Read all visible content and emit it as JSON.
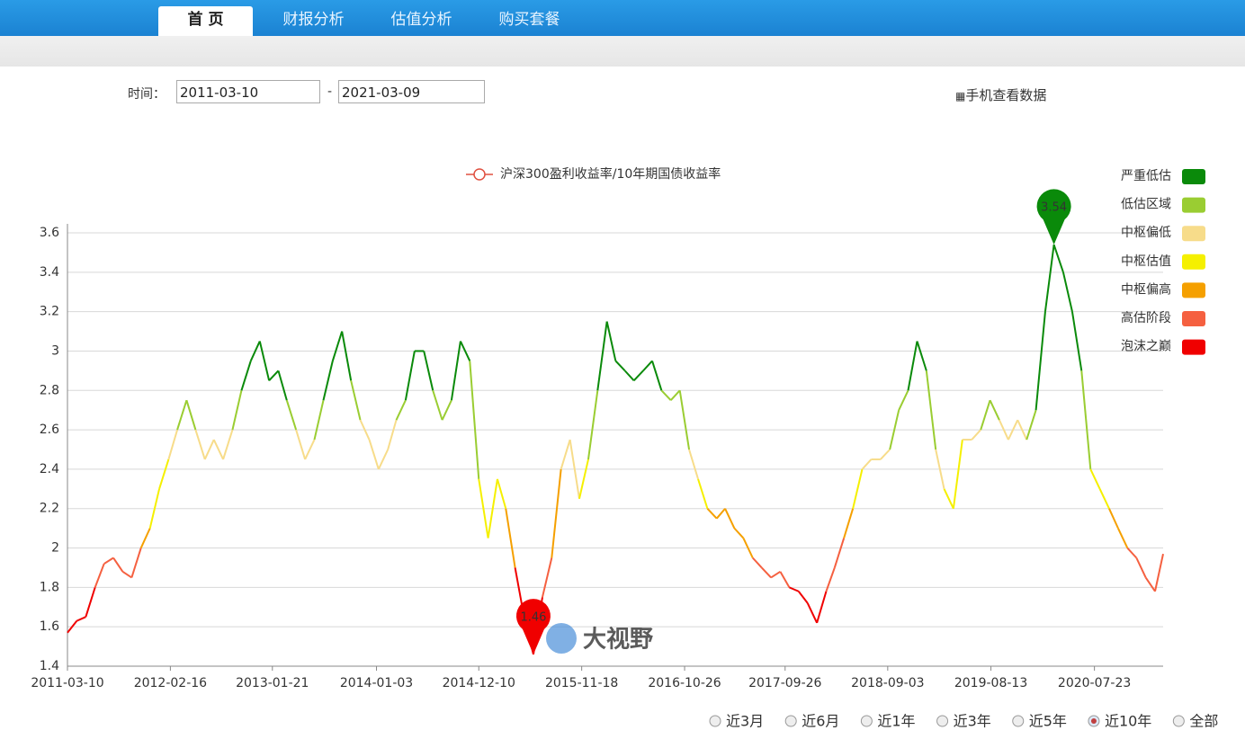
{
  "nav": {
    "tabs": [
      "首 页",
      "财报分析",
      "估值分析",
      "购买套餐"
    ],
    "active": 0
  },
  "filter": {
    "label": "时间：",
    "start": "2011-03-10",
    "separator": "-",
    "end": "2021-03-09",
    "mobile_link": "手机查看数据"
  },
  "chart_data": {
    "type": "line",
    "series_name": "沪深300盈利收益率/10年期国债收益率",
    "legend": [
      {
        "name": "严重低估",
        "color": "#0a8a0a",
        "min": 2.8
      },
      {
        "name": "低估区域",
        "color": "#9acd32",
        "min": 2.6
      },
      {
        "name": "中枢偏低",
        "color": "#f7dc8a",
        "min": 2.4
      },
      {
        "name": "中枢估值",
        "color": "#f5f000",
        "min": 2.2
      },
      {
        "name": "中枢偏高",
        "color": "#f5a000",
        "min": 2.0
      },
      {
        "name": "高估阶段",
        "color": "#f56040",
        "min": 1.8
      },
      {
        "name": "泡沫之巅",
        "color": "#f00000",
        "min": 1.4
      }
    ],
    "x": [
      "2011-03-10",
      "2011-04-10",
      "2011-05-10",
      "2011-06-10",
      "2011-07-10",
      "2011-08-10",
      "2011-09-10",
      "2011-10-10",
      "2011-11-10",
      "2011-12-10",
      "2012-01-10",
      "2012-02-10",
      "2012-03-10",
      "2012-04-10",
      "2012-05-10",
      "2012-06-10",
      "2012-07-10",
      "2012-08-10",
      "2012-09-10",
      "2012-10-10",
      "2012-11-10",
      "2012-12-10",
      "2013-01-10",
      "2013-02-10",
      "2013-03-10",
      "2013-04-10",
      "2013-05-10",
      "2013-06-10",
      "2013-07-10",
      "2013-08-10",
      "2013-09-10",
      "2013-10-10",
      "2013-11-10",
      "2013-12-10",
      "2014-01-10",
      "2014-02-10",
      "2014-03-10",
      "2014-04-10",
      "2014-05-10",
      "2014-06-10",
      "2014-07-10",
      "2014-08-10",
      "2014-09-10",
      "2014-10-10",
      "2014-11-10",
      "2014-12-10",
      "2015-01-10",
      "2015-02-10",
      "2015-03-10",
      "2015-04-10",
      "2015-05-10",
      "2015-06-10",
      "2015-07-10",
      "2015-08-10",
      "2015-09-10",
      "2015-10-10",
      "2015-11-10",
      "2015-12-10",
      "2016-01-10",
      "2016-02-10",
      "2016-03-10",
      "2016-04-10",
      "2016-05-10",
      "2016-06-10",
      "2016-07-10",
      "2016-08-10",
      "2016-09-10",
      "2016-10-10",
      "2016-11-10",
      "2016-12-10",
      "2017-01-10",
      "2017-02-10",
      "2017-03-10",
      "2017-04-10",
      "2017-05-10",
      "2017-06-10",
      "2017-07-10",
      "2017-08-10",
      "2017-09-10",
      "2017-10-10",
      "2017-11-10",
      "2017-12-10",
      "2018-01-10",
      "2018-02-10",
      "2018-03-10",
      "2018-04-10",
      "2018-05-10",
      "2018-06-10",
      "2018-07-10",
      "2018-08-10",
      "2018-09-10",
      "2018-10-10",
      "2018-11-10",
      "2018-12-10",
      "2019-01-10",
      "2019-02-10",
      "2019-03-10",
      "2019-04-10",
      "2019-05-10",
      "2019-06-10",
      "2019-07-10",
      "2019-08-10",
      "2019-09-10",
      "2019-10-10",
      "2019-11-10",
      "2019-12-10",
      "2020-01-10",
      "2020-02-10",
      "2020-03-10",
      "2020-04-10",
      "2020-05-10",
      "2020-06-10",
      "2020-07-10",
      "2020-08-10",
      "2020-09-10",
      "2020-10-10",
      "2020-11-10",
      "2020-12-10",
      "2021-01-10",
      "2021-02-10",
      "2021-03-09"
    ],
    "values": [
      1.57,
      1.63,
      1.65,
      1.8,
      1.92,
      1.95,
      1.88,
      1.85,
      2.0,
      2.1,
      2.3,
      2.45,
      2.6,
      2.75,
      2.6,
      2.45,
      2.55,
      2.45,
      2.6,
      2.8,
      2.95,
      3.05,
      2.85,
      2.9,
      2.75,
      2.6,
      2.45,
      2.55,
      2.75,
      2.95,
      3.1,
      2.85,
      2.65,
      2.55,
      2.4,
      2.5,
      2.65,
      2.75,
      3.0,
      3.0,
      2.8,
      2.65,
      2.75,
      3.05,
      2.95,
      2.35,
      2.05,
      2.35,
      2.2,
      1.9,
      1.65,
      1.46,
      1.75,
      1.95,
      2.4,
      2.55,
      2.25,
      2.45,
      2.8,
      3.15,
      2.95,
      2.9,
      2.85,
      2.9,
      2.95,
      2.8,
      2.75,
      2.8,
      2.5,
      2.35,
      2.2,
      2.15,
      2.2,
      2.1,
      2.05,
      1.95,
      1.9,
      1.85,
      1.88,
      1.8,
      1.78,
      1.72,
      1.62,
      1.78,
      1.9,
      2.05,
      2.2,
      2.4,
      2.45,
      2.45,
      2.5,
      2.7,
      2.8,
      3.05,
      2.9,
      2.5,
      2.3,
      2.2,
      2.55,
      2.55,
      2.6,
      2.75,
      2.65,
      2.55,
      2.65,
      2.55,
      2.7,
      3.2,
      3.54,
      3.4,
      3.2,
      2.9,
      2.4,
      2.3,
      2.2,
      2.1,
      2.0,
      1.95,
      1.85,
      1.78,
      1.97
    ],
    "peak": {
      "x": "2020-03-10",
      "value": 3.54
    },
    "trough": {
      "x": "2015-06-10",
      "value": 1.46
    },
    "xlim": [
      "2011-03-10",
      "2021-03-09"
    ],
    "xticks": [
      "2011-03-10",
      "2012-02-16",
      "2013-01-21",
      "2014-01-03",
      "2014-12-10",
      "2015-11-18",
      "2016-10-26",
      "2017-09-26",
      "2018-09-03",
      "2019-08-13",
      "2020-07-23"
    ],
    "ylim": [
      1.4,
      3.6
    ],
    "yticks": [
      1.4,
      1.6,
      1.8,
      2,
      2.2,
      2.4,
      2.6,
      2.8,
      3,
      3.2,
      3.4,
      3.6
    ],
    "grid": true,
    "watermark": "大视野"
  },
  "range_options": {
    "options": [
      "近3月",
      "近6月",
      "近1年",
      "近3年",
      "近5年",
      "近10年",
      "全部"
    ],
    "selected": 5
  }
}
